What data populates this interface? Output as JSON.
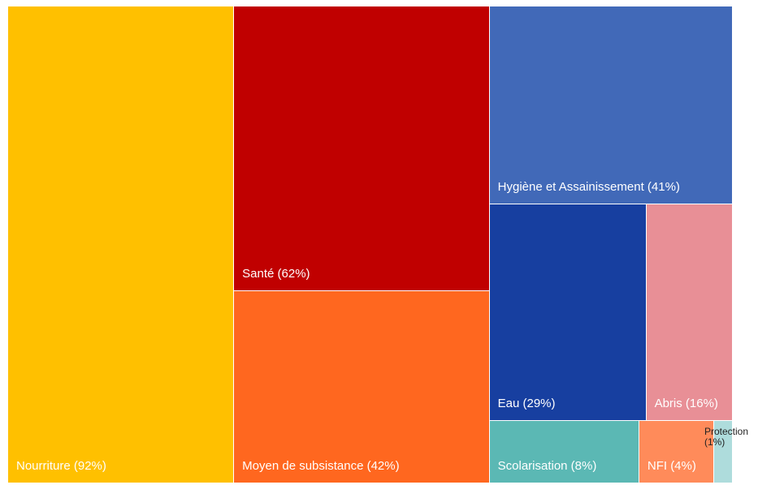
{
  "chart_data": {
    "type": "treemap",
    "labels": [
      "Nourriture (92%)",
      "Santé (62%)",
      "Moyen de subsistance (42%)",
      "Hygiène et Assainissement (41%)",
      "Eau (29%)",
      "Abris (16%)",
      "Scolarisation (8%)",
      "NFI (4%)",
      "Protection (1%)"
    ],
    "values": [
      92,
      62,
      42,
      41,
      29,
      16,
      8,
      4,
      1
    ],
    "colors": [
      "#ffc000",
      "#c00000",
      "#ff671f",
      "#4169b8",
      "#173fa0",
      "#e88f96",
      "#5bb8b4",
      "#ff8b5a",
      "#aedcdc"
    ]
  }
}
